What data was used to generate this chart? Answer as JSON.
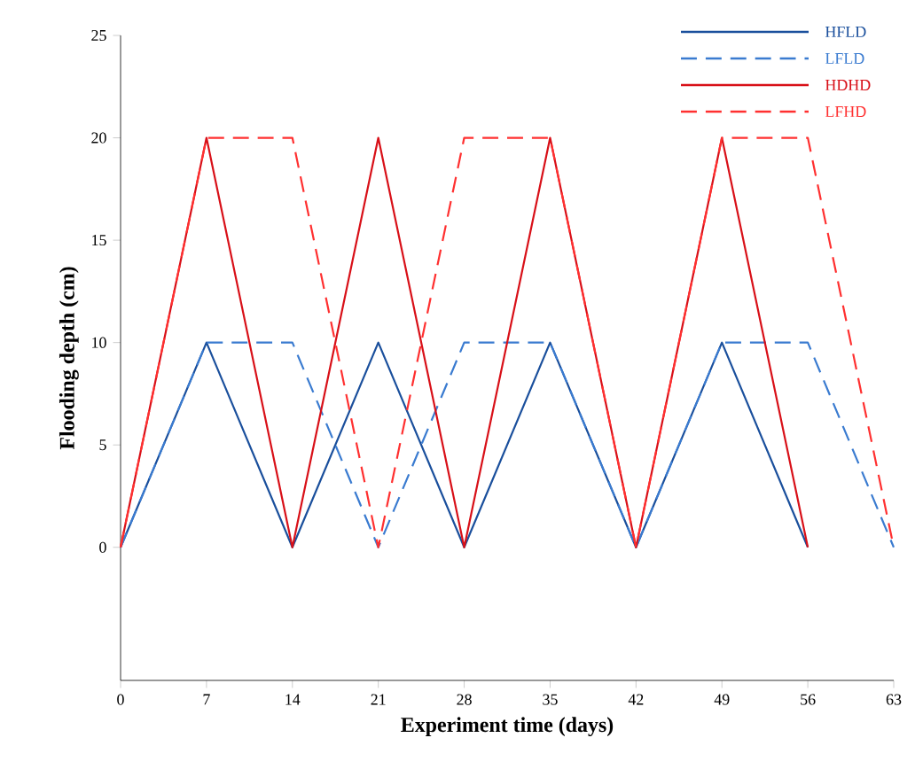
{
  "chart_data": {
    "type": "line",
    "xlabel": "Experiment time (days)",
    "ylabel": "Flooding depth (cm)",
    "x": [
      0,
      7,
      14,
      21,
      28,
      35,
      42,
      49,
      56,
      63
    ],
    "series": [
      {
        "name": "HFLD",
        "color": "#1a4f9c",
        "line_style": "solid",
        "values": [
          0,
          10,
          0,
          10,
          0,
          10,
          0,
          10,
          0,
          null
        ]
      },
      {
        "name": "LFLD",
        "color": "#3a7bd0",
        "line_style": "dashed",
        "values": [
          0,
          10,
          10,
          0,
          10,
          10,
          0,
          10,
          10,
          0
        ]
      },
      {
        "name": "HDHD",
        "color": "#d81018",
        "line_style": "solid",
        "values": [
          0,
          20,
          0,
          20,
          0,
          20,
          0,
          20,
          0,
          null
        ]
      },
      {
        "name": "LFHD",
        "color": "#ff3030",
        "line_style": "dashed",
        "values": [
          0,
          20,
          20,
          0,
          20,
          20,
          0,
          20,
          20,
          0
        ]
      }
    ],
    "xlim": [
      0,
      63
    ],
    "xticks": [
      0,
      7,
      14,
      21,
      28,
      35,
      42,
      49,
      56,
      63
    ],
    "ylim": [
      -6.5,
      25
    ],
    "yticks": [
      0,
      5,
      10,
      15,
      20,
      25
    ],
    "grid": false,
    "legend": "top right",
    "marker": "none"
  }
}
